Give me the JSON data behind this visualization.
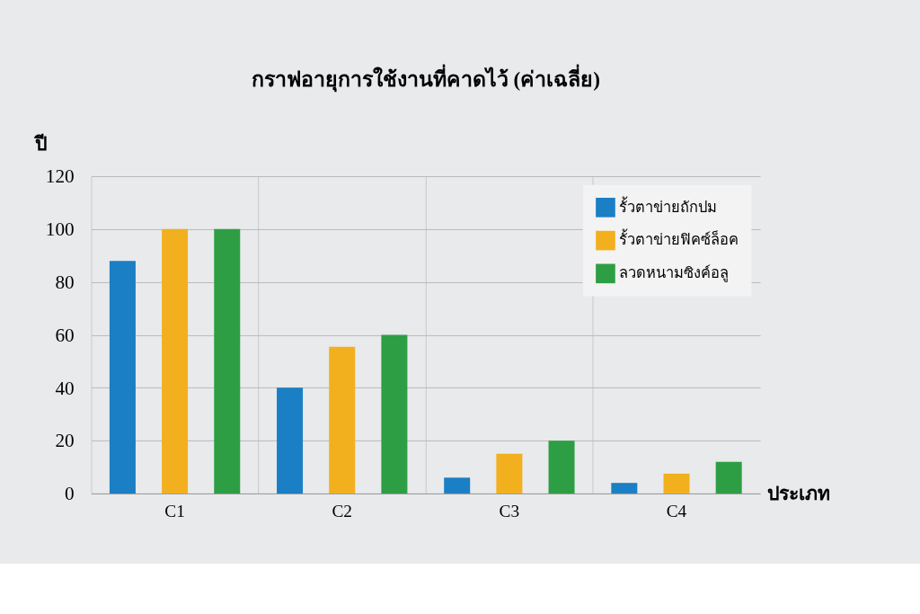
{
  "chart_data": {
    "type": "bar",
    "title": "กราฟอายุการใช้งานที่คาดไว้ (ค่าเฉลี่ย)",
    "ylabel": "ปี",
    "xlabel": "ประเภท",
    "categories": [
      "C1",
      "C2",
      "C3",
      "C4"
    ],
    "series": [
      {
        "name": "รั้วตาข่ายถักปม",
        "color": "#1a7fc4",
        "values": [
          88,
          40,
          6,
          4
        ]
      },
      {
        "name": "รั้วตาข่ายฟิคซ์ล็อค",
        "color": "#f2b01e",
        "values": [
          100,
          55.5,
          15,
          7.5
        ]
      },
      {
        "name": "ลวดหนามซิงค์อลู",
        "color": "#2e9e44",
        "values": [
          100,
          60,
          20,
          12
        ]
      }
    ],
    "ylim": [
      0,
      120
    ],
    "yticks": [
      0,
      20,
      40,
      60,
      80,
      100,
      120
    ],
    "grid": true,
    "legend": "top right"
  }
}
